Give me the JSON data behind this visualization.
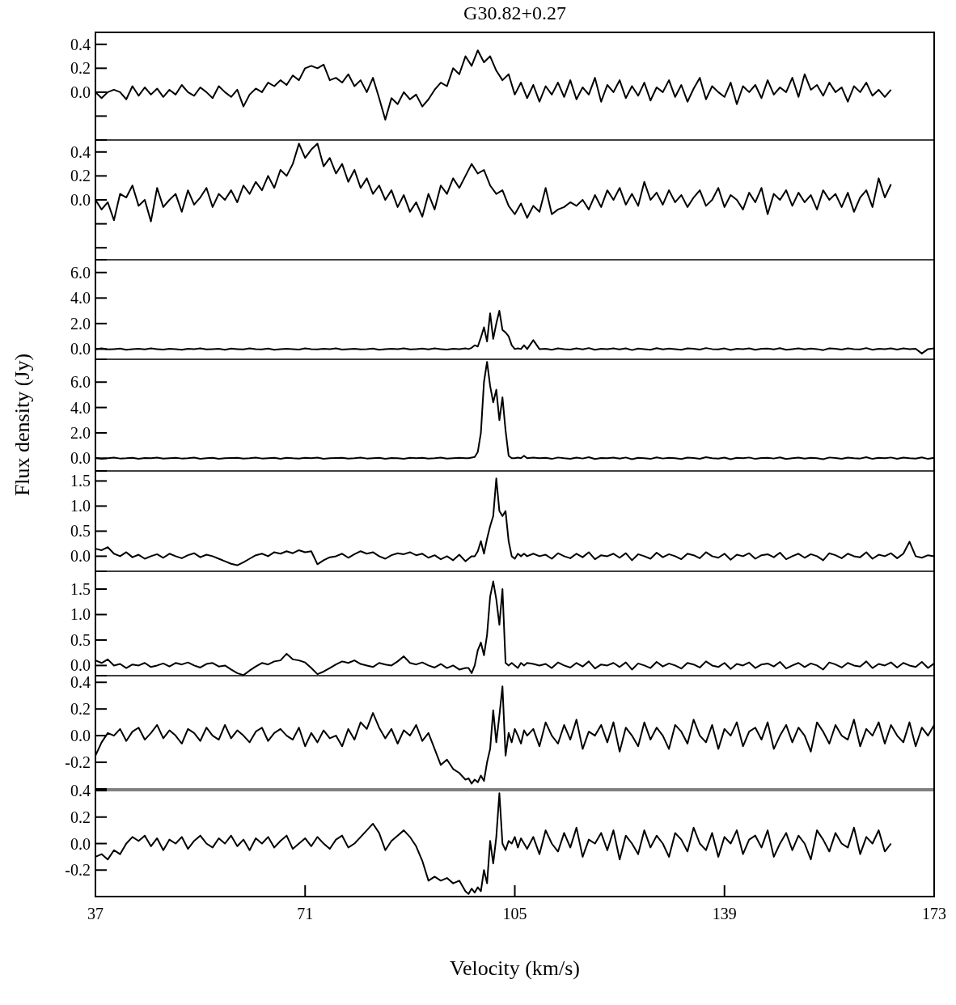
{
  "chart_data": [
    {
      "type": "line",
      "title": "G30.82+0.27",
      "color": "#000000",
      "xlim": [
        37,
        173
      ],
      "ylim": [
        -0.4,
        0.5
      ],
      "tick_labels": "y",
      "yticks": [
        {
          "value": -0.4,
          "label": null
        },
        {
          "value": -0.2,
          "label": null
        },
        {
          "value": 0,
          "label": "0.0"
        },
        {
          "value": 0.2,
          "label": "0.2"
        },
        {
          "value": 0.4,
          "label": "0.4"
        },
        {
          "value": 0.5,
          "label": null
        }
      ],
      "x": [
        37,
        38,
        39,
        40,
        41,
        42,
        43,
        44,
        45,
        46,
        47,
        48,
        49,
        50,
        51,
        52,
        53,
        54,
        55,
        56,
        57,
        58,
        59,
        60,
        61,
        62,
        63,
        64,
        65,
        66,
        67,
        68,
        69,
        70,
        71,
        72,
        73,
        74,
        75,
        76,
        77,
        78,
        79,
        80,
        81,
        82,
        83,
        84,
        85,
        86,
        87,
        88,
        89,
        90,
        91,
        92,
        93,
        94,
        95,
        96,
        97,
        98,
        99,
        100,
        101,
        102,
        103,
        104,
        105,
        106,
        107,
        108,
        109,
        110,
        111,
        112,
        113,
        114,
        115,
        116,
        117,
        118,
        119,
        120,
        121,
        122,
        123,
        124,
        125,
        126,
        127,
        128,
        129,
        130,
        131,
        132,
        133,
        134,
        135,
        136,
        137,
        138,
        139,
        140,
        141,
        142,
        143,
        144,
        145,
        146,
        147,
        148,
        149,
        150,
        151,
        152,
        153,
        154,
        155,
        156,
        157,
        158,
        159,
        160,
        161,
        162,
        163,
        164,
        165,
        166
      ],
      "values": [
        0.0,
        -0.05,
        0.0,
        0.02,
        0.0,
        -0.06,
        0.05,
        -0.03,
        0.04,
        -0.02,
        0.03,
        -0.04,
        0.02,
        -0.02,
        0.06,
        0.0,
        -0.03,
        0.04,
        0.0,
        -0.05,
        0.05,
        0.0,
        -0.04,
        0.02,
        -0.12,
        -0.02,
        0.03,
        0.0,
        0.08,
        0.05,
        0.1,
        0.06,
        0.14,
        0.1,
        0.2,
        0.22,
        0.2,
        0.23,
        0.1,
        0.12,
        0.08,
        0.15,
        0.05,
        0.1,
        0.0,
        0.12,
        -0.05,
        -0.23,
        -0.05,
        -0.1,
        0.0,
        -0.06,
        -0.02,
        -0.12,
        -0.06,
        0.02,
        0.08,
        0.05,
        0.2,
        0.15,
        0.3,
        0.22,
        0.35,
        0.25,
        0.3,
        0.18,
        0.1,
        0.15,
        -0.02,
        0.08,
        -0.05,
        0.06,
        -0.08,
        0.05,
        -0.02,
        0.08,
        -0.04,
        0.1,
        -0.06,
        0.04,
        -0.02,
        0.12,
        -0.08,
        0.06,
        0.0,
        0.1,
        -0.05,
        0.05,
        -0.03,
        0.08,
        -0.07,
        0.04,
        0.0,
        0.1,
        -0.04,
        0.06,
        -0.08,
        0.03,
        0.12,
        -0.06,
        0.05,
        0.0,
        -0.04,
        0.08,
        -0.1,
        0.05,
        0.0,
        0.06,
        -0.05,
        0.1,
        -0.02,
        0.04,
        0.0,
        0.12,
        -0.04,
        0.15,
        0.02,
        0.06,
        -0.03,
        0.08,
        0.0,
        0.04,
        -0.08,
        0.05,
        0.0,
        0.08,
        -0.03,
        0.02,
        -0.04,
        0.02
      ]
    },
    {
      "type": "line",
      "color": "#000000",
      "xlim": [
        37,
        173
      ],
      "ylim": [
        -0.5,
        0.5
      ],
      "tick_labels": "y",
      "yticks": [
        {
          "value": -0.5,
          "label": null
        },
        {
          "value": -0.4,
          "label": null
        },
        {
          "value": -0.2,
          "label": null
        },
        {
          "value": 0,
          "label": "0.0"
        },
        {
          "value": 0.2,
          "label": "0.2"
        },
        {
          "value": 0.4,
          "label": "0.4"
        },
        {
          "value": 0.5,
          "label": null
        }
      ],
      "x": [
        37,
        38,
        39,
        40,
        41,
        42,
        43,
        44,
        45,
        46,
        47,
        48,
        49,
        50,
        51,
        52,
        53,
        54,
        55,
        56,
        57,
        58,
        59,
        60,
        61,
        62,
        63,
        64,
        65,
        66,
        67,
        68,
        69,
        70,
        71,
        72,
        73,
        74,
        75,
        76,
        77,
        78,
        79,
        80,
        81,
        82,
        83,
        84,
        85,
        86,
        87,
        88,
        89,
        90,
        91,
        92,
        93,
        94,
        95,
        96,
        97,
        98,
        99,
        100,
        101,
        102,
        103,
        104,
        105,
        106,
        107,
        108,
        109,
        110,
        111,
        112,
        113,
        114,
        115,
        116,
        117,
        118,
        119,
        120,
        121,
        122,
        123,
        124,
        125,
        126,
        127,
        128,
        129,
        130,
        131,
        132,
        133,
        134,
        135,
        136,
        137,
        138,
        139,
        140,
        141,
        142,
        143,
        144,
        145,
        146,
        147,
        148,
        149,
        150,
        151,
        152,
        153,
        154,
        155,
        156,
        157,
        158,
        159,
        160,
        161,
        162,
        163,
        164,
        165,
        166
      ],
      "values": [
        0.0,
        -0.08,
        -0.02,
        -0.17,
        0.05,
        0.02,
        0.12,
        -0.05,
        0.0,
        -0.18,
        0.1,
        -0.06,
        0.0,
        0.05,
        -0.1,
        0.08,
        -0.04,
        0.02,
        0.1,
        -0.06,
        0.05,
        0.0,
        0.08,
        -0.02,
        0.12,
        0.05,
        0.15,
        0.08,
        0.2,
        0.1,
        0.25,
        0.2,
        0.3,
        0.47,
        0.35,
        0.42,
        0.47,
        0.28,
        0.35,
        0.22,
        0.3,
        0.15,
        0.25,
        0.1,
        0.18,
        0.05,
        0.12,
        0.0,
        0.08,
        -0.06,
        0.04,
        -0.1,
        -0.02,
        -0.14,
        0.05,
        -0.08,
        0.12,
        0.05,
        0.18,
        0.1,
        0.2,
        0.3,
        0.22,
        0.25,
        0.12,
        0.05,
        0.08,
        -0.05,
        -0.12,
        -0.03,
        -0.15,
        -0.05,
        -0.1,
        0.1,
        -0.12,
        -0.08,
        -0.06,
        -0.02,
        -0.05,
        0.0,
        -0.08,
        0.04,
        -0.06,
        0.08,
        0.0,
        0.1,
        -0.04,
        0.05,
        -0.05,
        0.15,
        0.0,
        0.06,
        -0.04,
        0.08,
        -0.02,
        0.04,
        -0.06,
        0.02,
        0.08,
        -0.05,
        0.0,
        0.1,
        -0.06,
        0.04,
        0.0,
        -0.08,
        0.06,
        -0.02,
        0.1,
        -0.12,
        0.05,
        0.0,
        0.08,
        -0.05,
        0.06,
        -0.02,
        0.04,
        -0.08,
        0.08,
        0.0,
        0.05,
        -0.06,
        0.06,
        -0.1,
        0.02,
        0.08,
        -0.06,
        0.18,
        0.02,
        0.13
      ]
    },
    {
      "type": "line",
      "color": "#000000",
      "xlim": [
        37,
        173
      ],
      "ylim": [
        -0.8,
        7
      ],
      "tick_labels": "y",
      "yticks": [
        {
          "value": -0.8,
          "label": null
        },
        {
          "value": 0,
          "label": "0.0"
        },
        {
          "value": 7,
          "label": null
        },
        {
          "value": 2,
          "label": "2.0"
        },
        {
          "value": 4,
          "label": "4.0"
        },
        {
          "value": 6,
          "label": "6.0"
        }
      ],
      "x": [
        37,
        38,
        39,
        40,
        41,
        42,
        43,
        44,
        45,
        46,
        47,
        48,
        49,
        50,
        51,
        52,
        53,
        54,
        55,
        56,
        57,
        58,
        59,
        60,
        61,
        62,
        63,
        64,
        65,
        66,
        67,
        68,
        69,
        70,
        71,
        72,
        73,
        74,
        75,
        76,
        77,
        78,
        79,
        80,
        81,
        82,
        83,
        84,
        85,
        86,
        87,
        88,
        89,
        90,
        91,
        92,
        93,
        94,
        95,
        96,
        97,
        97.5,
        98,
        98.5,
        99,
        99.5,
        100,
        100.5,
        101,
        101.5,
        102,
        102.5,
        103,
        103.5,
        104,
        104.5,
        105,
        105.5,
        106,
        106.5,
        107,
        108,
        109,
        110,
        111,
        112,
        113,
        114,
        115,
        116,
        117,
        118,
        119,
        120,
        121,
        122,
        123,
        124,
        125,
        126,
        127,
        128,
        129,
        130,
        131,
        132,
        133,
        134,
        135,
        136,
        137,
        138,
        139,
        140,
        141,
        142,
        143,
        144,
        145,
        146,
        147,
        148,
        149,
        150,
        151,
        152,
        153,
        154,
        155,
        156,
        157,
        158,
        159,
        160,
        161,
        162,
        163,
        164,
        165,
        166,
        167,
        168,
        169,
        170,
        171,
        172,
        173
      ],
      "values": [
        0,
        0.05,
        -0.03,
        0,
        0.04,
        -0.05,
        0,
        0.03,
        -0.02,
        0.05,
        0,
        -0.04,
        0.02,
        0,
        -0.06,
        0.03,
        0,
        0.05,
        -0.03,
        0,
        0.02,
        -0.05,
        0.04,
        0,
        -0.03,
        0.05,
        0,
        -0.02,
        0.04,
        -0.05,
        0,
        0.03,
        0,
        -0.04,
        0.05,
        0,
        -0.03,
        0.02,
        0,
        0.05,
        -0.04,
        0,
        0.03,
        -0.02,
        0,
        0.04,
        -0.05,
        0,
        0.03,
        0,
        0.06,
        -0.03,
        0,
        0.04,
        -0.02,
        0.05,
        0,
        -0.04,
        0.02,
        0,
        0.05,
        0.0,
        0.1,
        0.3,
        0.2,
        0.9,
        1.7,
        0.6,
        2.8,
        0.8,
        2.0,
        3.0,
        1.5,
        1.3,
        1.0,
        0.3,
        0.0,
        0.05,
        0.0,
        0.3,
        0.0,
        0.7,
        0.0,
        0.03,
        -0.05,
        0.06,
        0,
        -0.04,
        0.05,
        -0.02,
        0.08,
        -0.06,
        0.02,
        0,
        0.05,
        -0.03,
        0.06,
        -0.08,
        0.04,
        0,
        -0.05,
        0.07,
        -0.02,
        0.04,
        0,
        -0.06,
        0.05,
        0.02,
        -0.04,
        0.08,
        0,
        -0.03,
        0.05,
        -0.07,
        0.03,
        0,
        0.06,
        -0.05,
        0.02,
        0.04,
        -0.02,
        0.07,
        -0.06,
        0,
        0.05,
        -0.03,
        0.04,
        0,
        -0.08,
        0.06,
        0.02,
        -0.04,
        0.05,
        0,
        -0.02,
        0.08,
        -0.05,
        0.03,
        0,
        0.06,
        -0.04,
        0.05,
        0,
        0.02,
        -0.35,
        0,
        0.05
      ]
    },
    {
      "type": "line",
      "color": "#000000",
      "xlim": [
        37,
        173
      ],
      "ylim": [
        -1,
        7.8
      ],
      "tick_labels": "y",
      "ylabel": "Flux density (Jy)",
      "yticks": [
        {
          "value": -1,
          "label": null
        },
        {
          "value": 0,
          "label": "0.0"
        },
        {
          "value": 7.8,
          "label": null
        },
        {
          "value": 2,
          "label": "2.0"
        },
        {
          "value": 4,
          "label": "4.0"
        },
        {
          "value": 6,
          "label": "6.0"
        }
      ],
      "x": [
        37,
        38,
        39,
        40,
        41,
        42,
        43,
        44,
        45,
        46,
        47,
        48,
        49,
        50,
        51,
        52,
        53,
        54,
        55,
        56,
        57,
        58,
        59,
        60,
        61,
        62,
        63,
        64,
        65,
        66,
        67,
        68,
        69,
        70,
        71,
        72,
        73,
        74,
        75,
        76,
        77,
        78,
        79,
        80,
        81,
        82,
        83,
        84,
        85,
        86,
        87,
        88,
        89,
        90,
        91,
        92,
        93,
        94,
        95,
        96,
        97,
        97.5,
        98,
        98.5,
        99,
        99.5,
        100,
        100.5,
        101,
        101.5,
        102,
        102.5,
        103,
        103.5,
        104,
        104.5,
        105,
        105.5,
        106,
        106.5,
        107,
        108,
        109,
        110,
        111,
        112,
        113,
        114,
        115,
        116,
        117,
        118,
        119,
        120,
        121,
        122,
        123,
        124,
        125,
        126,
        127,
        128,
        129,
        130,
        131,
        132,
        133,
        134,
        135,
        136,
        137,
        138,
        139,
        140,
        141,
        142,
        143,
        144,
        145,
        146,
        147,
        148,
        149,
        150,
        151,
        152,
        153,
        154,
        155,
        156,
        157,
        158,
        159,
        160,
        161,
        162,
        163,
        164,
        165,
        166,
        167,
        168,
        169,
        170,
        171,
        172,
        173
      ],
      "values": [
        0.03,
        -0.04,
        0,
        0.05,
        -0.02,
        0,
        0.04,
        -0.05,
        0.02,
        0,
        0.05,
        -0.03,
        0,
        0.04,
        -0.02,
        0,
        0.05,
        -0.04,
        0,
        0.03,
        -0.05,
        0,
        0.02,
        0.04,
        -0.03,
        0,
        0.05,
        -0.02,
        0,
        0.03,
        -0.05,
        0.04,
        0,
        -0.02,
        0.03,
        0,
        0.05,
        -0.04,
        0,
        0.02,
        0.04,
        -0.03,
        0,
        0.05,
        -0.02,
        0,
        0.03,
        -0.04,
        0.02,
        0,
        -0.05,
        0.04,
        0,
        0.03,
        -0.02,
        0,
        0.05,
        -0.03,
        0,
        0.04,
        0,
        0.0,
        0.05,
        0.1,
        0.5,
        2.0,
        6.0,
        7.6,
        5.7,
        4.4,
        5.4,
        3.0,
        4.8,
        2.2,
        0.2,
        0.0,
        0.0,
        0.05,
        0.0,
        0.2,
        0.0,
        0.05,
        0.0,
        0.03,
        -0.05,
        0.06,
        0,
        -0.04,
        0.05,
        -0.02,
        0.08,
        -0.06,
        0.02,
        0,
        0.05,
        -0.03,
        0.06,
        -0.08,
        0.04,
        0,
        -0.05,
        0.07,
        -0.02,
        0.04,
        0,
        -0.06,
        0.05,
        0.02,
        -0.04,
        0.08,
        0,
        -0.03,
        0.05,
        -0.07,
        0.03,
        0,
        0.06,
        -0.05,
        0.02,
        0.04,
        -0.02,
        0.07,
        -0.06,
        0,
        0.05,
        -0.03,
        0.04,
        0,
        -0.08,
        0.06,
        0.02,
        -0.04,
        0.05,
        0,
        -0.02,
        0.08,
        -0.05,
        0.03,
        0,
        0.06,
        -0.04,
        0.05,
        0,
        -0.03,
        0.07,
        -0.05,
        0.04
      ]
    },
    {
      "type": "line",
      "color": "#000000",
      "xlim": [
        37,
        173
      ],
      "ylim": [
        -0.3,
        1.7
      ],
      "tick_labels": "y",
      "yticks": [
        {
          "value": -0.3,
          "label": null
        },
        {
          "value": 0,
          "label": "0.0"
        },
        {
          "value": 1.7,
          "label": null
        },
        {
          "value": 0.5,
          "label": "0.5"
        },
        {
          "value": 1,
          "label": "1.0"
        },
        {
          "value": 1.5,
          "label": "1.5"
        }
      ],
      "x": [
        37,
        38,
        39,
        40,
        41,
        42,
        43,
        44,
        45,
        46,
        47,
        48,
        49,
        50,
        51,
        52,
        53,
        54,
        55,
        56,
        57,
        58,
        59,
        60,
        61,
        62,
        63,
        64,
        65,
        66,
        67,
        68,
        69,
        70,
        71,
        72,
        73,
        74,
        75,
        76,
        77,
        78,
        79,
        80,
        81,
        82,
        83,
        84,
        85,
        86,
        87,
        88,
        89,
        90,
        91,
        92,
        93,
        94,
        95,
        96,
        97,
        97.5,
        98,
        98.5,
        99,
        99.5,
        100,
        100.5,
        101,
        101.5,
        102,
        102.5,
        103,
        103.5,
        104,
        104.5,
        105,
        105.5,
        106,
        106.5,
        107,
        108,
        109,
        110,
        111,
        112,
        113,
        114,
        115,
        116,
        117,
        118,
        119,
        120,
        121,
        122,
        123,
        124,
        125,
        126,
        127,
        128,
        129,
        130,
        131,
        132,
        133,
        134,
        135,
        136,
        137,
        138,
        139,
        140,
        141,
        142,
        143,
        144,
        145,
        146,
        147,
        148,
        149,
        150,
        151,
        152,
        153,
        154,
        155,
        156,
        157,
        158,
        159,
        160,
        161,
        162,
        163,
        164,
        165,
        166,
        167,
        168,
        169,
        170,
        171,
        172,
        173
      ],
      "values": [
        0.15,
        0.12,
        0.18,
        0.05,
        0.0,
        0.08,
        -0.02,
        0.03,
        -0.05,
        0.0,
        0.04,
        -0.03,
        0.05,
        0.0,
        -0.04,
        0.02,
        0.06,
        -0.02,
        0.03,
        0.0,
        -0.05,
        -0.1,
        -0.15,
        -0.18,
        -0.12,
        -0.05,
        0.02,
        0.05,
        0.0,
        0.08,
        0.05,
        0.1,
        0.06,
        0.12,
        0.08,
        0.1,
        -0.16,
        -0.08,
        -0.02,
        0.0,
        0.05,
        -0.03,
        0.04,
        0.1,
        0.05,
        0.08,
        0.0,
        -0.05,
        0.02,
        0.06,
        0.04,
        0.08,
        0.02,
        0.05,
        -0.03,
        0.02,
        -0.06,
        0.0,
        -0.08,
        0.03,
        -0.1,
        -0.05,
        0.0,
        0.0,
        0.1,
        0.3,
        0.05,
        0.35,
        0.6,
        0.8,
        1.55,
        0.9,
        0.8,
        0.9,
        0.3,
        0.0,
        -0.05,
        0.05,
        0.0,
        0.05,
        0.0,
        0.05,
        0.0,
        0.03,
        -0.05,
        0.06,
        0,
        -0.04,
        0.05,
        -0.02,
        0.08,
        -0.06,
        0.02,
        0,
        0.05,
        -0.03,
        0.06,
        -0.08,
        0.04,
        0,
        -0.05,
        0.07,
        -0.02,
        0.04,
        0,
        -0.06,
        0.05,
        0.02,
        -0.04,
        0.08,
        0,
        -0.03,
        0.05,
        -0.07,
        0.03,
        0,
        0.06,
        -0.05,
        0.02,
        0.04,
        -0.02,
        0.07,
        -0.06,
        0,
        0.05,
        -0.03,
        0.04,
        0,
        -0.08,
        0.06,
        0.02,
        -0.04,
        0.05,
        0,
        -0.02,
        0.08,
        -0.05,
        0.03,
        0,
        0.06,
        -0.04,
        0.05,
        0.29,
        0,
        -0.03,
        0.02,
        0
      ]
    },
    {
      "type": "line",
      "color": "#000000",
      "xlim": [
        37,
        173
      ],
      "ylim": [
        -0.2,
        1.85
      ],
      "tick_labels": "y",
      "yticks": [
        {
          "value": -0.2,
          "label": null
        },
        {
          "value": 0,
          "label": "0.0"
        },
        {
          "value": 1.85,
          "label": null
        },
        {
          "value": 0.5,
          "label": "0.5"
        },
        {
          "value": 1,
          "label": "1.0"
        },
        {
          "value": 1.5,
          "label": "1.5"
        }
      ],
      "x": [
        37,
        38,
        39,
        40,
        41,
        42,
        43,
        44,
        45,
        46,
        47,
        48,
        49,
        50,
        51,
        52,
        53,
        54,
        55,
        56,
        57,
        58,
        59,
        60,
        61,
        62,
        63,
        64,
        65,
        66,
        67,
        68,
        69,
        70,
        71,
        72,
        73,
        74,
        75,
        76,
        77,
        78,
        79,
        80,
        81,
        82,
        83,
        84,
        85,
        86,
        87,
        88,
        89,
        90,
        91,
        92,
        93,
        94,
        95,
        96,
        97,
        97.5,
        98,
        98.5,
        99,
        99.5,
        100,
        100.5,
        101,
        101.5,
        102,
        102.5,
        103,
        103.5,
        104,
        104.5,
        105,
        105.5,
        106,
        106.5,
        107,
        108,
        109,
        110,
        111,
        112,
        113,
        114,
        115,
        116,
        117,
        118,
        119,
        120,
        121,
        122,
        123,
        124,
        125,
        126,
        127,
        128,
        129,
        130,
        131,
        132,
        133,
        134,
        135,
        136,
        137,
        138,
        139,
        140,
        141,
        142,
        143,
        144,
        145,
        146,
        147,
        148,
        149,
        150,
        151,
        152,
        153,
        154,
        155,
        156,
        157,
        158,
        159,
        160,
        161,
        162,
        163,
        164,
        165,
        166,
        167,
        168,
        169,
        170,
        171,
        172,
        173
      ],
      "values": [
        0.1,
        0.05,
        0.12,
        0.0,
        0.03,
        -0.05,
        0.02,
        0.0,
        0.05,
        -0.03,
        0.0,
        0.04,
        -0.02,
        0.05,
        0.02,
        0.06,
        0.0,
        -0.04,
        0.03,
        0.05,
        -0.02,
        0.0,
        -0.08,
        -0.15,
        -0.19,
        -0.1,
        -0.02,
        0.05,
        0.02,
        0.08,
        0.1,
        0.23,
        0.12,
        0.1,
        0.06,
        -0.05,
        -0.17,
        -0.12,
        -0.05,
        0.02,
        0.08,
        0.05,
        0.1,
        0.03,
        0.0,
        -0.03,
        0.05,
        0.02,
        0.0,
        0.08,
        0.18,
        0.05,
        0.02,
        0.06,
        0.0,
        -0.04,
        0.03,
        -0.05,
        0.0,
        -0.08,
        -0.05,
        -0.05,
        -0.15,
        0.0,
        0.3,
        0.45,
        0.2,
        0.6,
        1.35,
        1.65,
        1.3,
        0.8,
        1.5,
        0.05,
        0.0,
        0.05,
        0.0,
        -0.05,
        0.05,
        0.0,
        0.05,
        0.03,
        0.0,
        0.03,
        -0.05,
        0.06,
        0,
        -0.04,
        0.05,
        -0.02,
        0.08,
        -0.06,
        0.02,
        0,
        0.05,
        -0.03,
        0.06,
        -0.08,
        0.04,
        0,
        -0.05,
        0.07,
        -0.02,
        0.04,
        0,
        -0.06,
        0.05,
        0.02,
        -0.04,
        0.08,
        0,
        -0.03,
        0.05,
        -0.07,
        0.03,
        0,
        0.06,
        -0.05,
        0.02,
        0.04,
        -0.02,
        0.07,
        -0.06,
        0,
        0.05,
        -0.03,
        0.04,
        0,
        -0.08,
        0.06,
        0.02,
        -0.04,
        0.05,
        0,
        -0.02,
        0.08,
        -0.05,
        0.03,
        0,
        0.06,
        -0.04,
        0.05,
        0,
        -0.03,
        0.07,
        -0.05,
        0.04
      ]
    },
    {
      "type": "line",
      "color": "#000000",
      "xlim": [
        37,
        173
      ],
      "ylim": [
        -0.4,
        0.45
      ],
      "tick_labels": "y",
      "yticks": [
        {
          "value": -0.4,
          "label": null
        },
        {
          "value": -0.2,
          "label": "-0.2"
        },
        {
          "value": 0,
          "label": "0.0"
        },
        {
          "value": 0.2,
          "label": "0.2"
        },
        {
          "value": 0.4,
          "label": "0.4"
        }
      ],
      "x": [
        37,
        38,
        39,
        40,
        41,
        42,
        43,
        44,
        45,
        46,
        47,
        48,
        49,
        50,
        51,
        52,
        53,
        54,
        55,
        56,
        57,
        58,
        59,
        60,
        61,
        62,
        63,
        64,
        65,
        66,
        67,
        68,
        69,
        70,
        71,
        72,
        73,
        74,
        75,
        76,
        77,
        78,
        79,
        80,
        81,
        82,
        83,
        84,
        85,
        86,
        87,
        88,
        89,
        90,
        91,
        92,
        93,
        94,
        95,
        96,
        97,
        97.5,
        98,
        98.5,
        99,
        99.5,
        100,
        100.5,
        101,
        101.5,
        102,
        102.5,
        103,
        103.5,
        104,
        104.5,
        105,
        105.5,
        106,
        106.5,
        107,
        108,
        109,
        110,
        111,
        112,
        113,
        114,
        115,
        116,
        117,
        118,
        119,
        120,
        121,
        122,
        123,
        124,
        125,
        126,
        127,
        128,
        129,
        130,
        131,
        132,
        133,
        134,
        135,
        136,
        137,
        138,
        139,
        140,
        141,
        142,
        143,
        144,
        145,
        146,
        147,
        148,
        149,
        150,
        151,
        152,
        153,
        154,
        155,
        156,
        157,
        158,
        159,
        160,
        161,
        162,
        163,
        164,
        165,
        166,
        167,
        168,
        169,
        170,
        171,
        172,
        173
      ],
      "values": [
        -0.15,
        -0.05,
        0.02,
        0.0,
        0.05,
        -0.04,
        0.03,
        0.06,
        -0.03,
        0.02,
        0.08,
        -0.02,
        0.04,
        0.0,
        -0.06,
        0.05,
        0.02,
        -0.04,
        0.06,
        0.0,
        -0.03,
        0.08,
        -0.02,
        0.04,
        0.0,
        -0.05,
        0.03,
        0.06,
        -0.04,
        0.02,
        0.05,
        0.0,
        -0.03,
        0.06,
        -0.08,
        0.02,
        -0.05,
        0.04,
        -0.02,
        0.0,
        -0.08,
        0.05,
        -0.03,
        0.1,
        0.05,
        0.17,
        0.06,
        -0.02,
        0.05,
        -0.06,
        0.04,
        0.0,
        0.08,
        -0.04,
        0.02,
        -0.1,
        -0.22,
        -0.18,
        -0.25,
        -0.28,
        -0.33,
        -0.32,
        -0.36,
        -0.33,
        -0.35,
        -0.3,
        -0.34,
        -0.2,
        -0.1,
        0.19,
        -0.05,
        0.15,
        0.37,
        -0.15,
        0.02,
        -0.05,
        0.05,
        0.0,
        -0.06,
        0.04,
        0.0,
        0.05,
        -0.08,
        0.1,
        0,
        -0.06,
        0.08,
        -0.03,
        0.12,
        -0.1,
        0.03,
        0,
        0.08,
        -0.05,
        0.1,
        -0.12,
        0.06,
        0,
        -0.08,
        0.1,
        -0.03,
        0.06,
        0,
        -0.1,
        0.08,
        0.03,
        -0.06,
        0.12,
        0,
        -0.05,
        0.08,
        -0.1,
        0.05,
        0,
        0.1,
        -0.08,
        0.03,
        0.06,
        -0.03,
        0.1,
        -0.1,
        0,
        0.08,
        -0.05,
        0.06,
        0,
        -0.12,
        0.1,
        0.03,
        -0.06,
        0.08,
        0,
        -0.03,
        0.12,
        -0.08,
        0.05,
        0,
        0.1,
        -0.06,
        0.08,
        0,
        -0.05,
        0.1,
        -0.08,
        0.06,
        0,
        0.08
      ]
    },
    {
      "type": "line",
      "color": "#000000",
      "xlim": [
        37,
        173
      ],
      "ylim": [
        -0.4,
        0.4
      ],
      "xlabel": "Velocity (km/s)",
      "xticks": [
        37,
        71,
        105,
        139,
        173
      ],
      "yticks": [
        {
          "value": -0.2,
          "label": "-0.2"
        },
        {
          "value": 0,
          "label": "0.0"
        },
        {
          "value": 0.2,
          "label": "0.2"
        },
        {
          "value": 0.4,
          "label": "0.4"
        }
      ],
      "x": [
        37,
        38,
        39,
        40,
        41,
        42,
        43,
        44,
        45,
        46,
        47,
        48,
        49,
        50,
        51,
        52,
        53,
        54,
        55,
        56,
        57,
        58,
        59,
        60,
        61,
        62,
        63,
        64,
        65,
        66,
        67,
        68,
        69,
        70,
        71,
        72,
        73,
        74,
        75,
        76,
        77,
        78,
        79,
        80,
        81,
        82,
        83,
        84,
        85,
        86,
        87,
        88,
        89,
        90,
        91,
        92,
        93,
        94,
        95,
        96,
        97,
        97.5,
        98,
        98.5,
        99,
        99.5,
        100,
        100.5,
        101,
        101.5,
        102,
        102.5,
        103,
        103.5,
        104,
        104.5,
        105,
        105.5,
        106,
        106.5,
        107,
        108,
        109,
        110,
        111,
        112,
        113,
        114,
        115,
        116,
        117,
        118,
        119,
        120,
        121,
        122,
        123,
        124,
        125,
        126,
        127,
        128,
        129,
        130,
        131,
        132,
        133,
        134,
        135,
        136,
        137,
        138,
        139,
        140,
        141,
        142,
        143,
        144,
        145,
        146,
        147,
        148,
        149,
        150,
        151,
        152,
        153,
        154,
        155,
        156,
        157,
        158,
        159,
        160,
        161,
        162,
        163,
        164,
        165,
        166
      ],
      "values": [
        -0.1,
        -0.08,
        -0.12,
        -0.05,
        -0.08,
        0.0,
        0.05,
        0.02,
        0.06,
        -0.02,
        0.04,
        -0.05,
        0.03,
        0.0,
        0.05,
        -0.04,
        0.02,
        0.06,
        0.0,
        -0.03,
        0.04,
        0.0,
        0.06,
        -0.02,
        0.03,
        -0.05,
        0.04,
        0.0,
        0.05,
        -0.03,
        0.02,
        0.06,
        -0.04,
        0.0,
        0.04,
        -0.02,
        0.05,
        0.0,
        -0.04,
        0.03,
        0.06,
        -0.03,
        0.0,
        0.05,
        0.1,
        0.15,
        0.08,
        -0.05,
        0.02,
        0.06,
        0.1,
        0.05,
        -0.02,
        -0.13,
        -0.28,
        -0.25,
        -0.28,
        -0.26,
        -0.3,
        -0.28,
        -0.36,
        -0.38,
        -0.34,
        -0.37,
        -0.33,
        -0.36,
        -0.2,
        -0.3,
        0.02,
        -0.15,
        0.05,
        0.38,
        0.0,
        -0.05,
        0.02,
        0.0,
        0.05,
        -0.03,
        0.04,
        0.0,
        -0.04,
        0.05,
        -0.08,
        0.1,
        0,
        -0.06,
        0.08,
        -0.03,
        0.12,
        -0.1,
        0.03,
        0,
        0.08,
        -0.05,
        0.1,
        -0.12,
        0.06,
        0,
        -0.08,
        0.1,
        -0.03,
        0.06,
        0,
        -0.1,
        0.08,
        0.03,
        -0.06,
        0.12,
        0,
        -0.05,
        0.08,
        -0.1,
        0.05,
        0,
        0.1,
        -0.08,
        0.03,
        0.06,
        -0.03,
        0.1,
        -0.1,
        0,
        0.08,
        -0.05,
        0.06,
        0,
        -0.12,
        0.1,
        0.03,
        -0.06,
        0.08,
        0,
        -0.03,
        0.12,
        -0.08,
        0.05,
        0,
        0.1,
        -0.06,
        0.0
      ]
    }
  ]
}
